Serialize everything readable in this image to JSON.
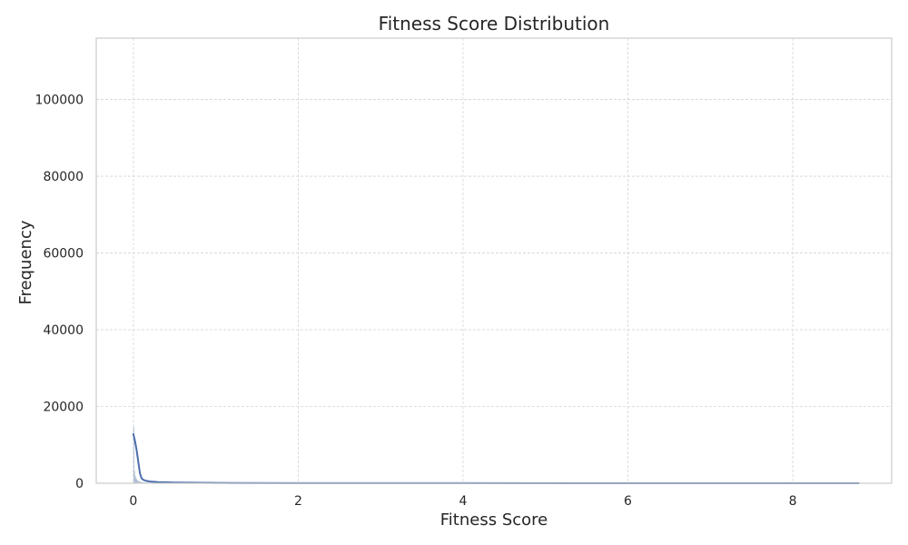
{
  "chart_data": {
    "type": "histogram",
    "title": "Fitness Score Distribution",
    "xlabel": "Fitness Score",
    "ylabel": "Frequency",
    "xlim": [
      -0.45,
      9.2
    ],
    "ylim": [
      0,
      116000
    ],
    "xticks": [
      0,
      2,
      4,
      6,
      8
    ],
    "xtick_labels": [
      "0",
      "2",
      "4",
      "6",
      "8"
    ],
    "yticks": [
      0,
      20000,
      40000,
      60000,
      80000,
      100000
    ],
    "ytick_labels": [
      "0",
      "20000",
      "40000",
      "60000",
      "80000",
      "100000"
    ],
    "grid": true,
    "bin_width": 0.01,
    "histogram": {
      "bin_starts": [
        0.0,
        0.01,
        0.02,
        0.03,
        0.04,
        0.05,
        0.06,
        0.07,
        0.08,
        0.09,
        0.1,
        0.11,
        0.12,
        0.13,
        0.14,
        0.15,
        0.17,
        0.19,
        0.22,
        0.25,
        0.3,
        0.35,
        0.4,
        0.5,
        0.6,
        0.8,
        1.0,
        1.5,
        2.0,
        3.0,
        4.0,
        5.0,
        6.0,
        7.0,
        8.0
      ],
      "counts": [
        14800,
        3200,
        1900,
        1300,
        950,
        700,
        560,
        460,
        390,
        330,
        290,
        250,
        220,
        200,
        180,
        160,
        140,
        120,
        100,
        90,
        75,
        62,
        52,
        40,
        32,
        24,
        18,
        12,
        9,
        6,
        5,
        4,
        3,
        3,
        2
      ]
    },
    "kde": {
      "x": [
        0.0,
        0.02,
        0.04,
        0.06,
        0.08,
        0.1,
        0.12,
        0.15,
        0.2,
        0.3,
        0.5,
        1.0,
        2.0,
        4.0,
        6.0,
        8.0,
        8.8
      ],
      "y": [
        12800,
        11000,
        8600,
        5600,
        2600,
        1300,
        900,
        650,
        450,
        300,
        180,
        80,
        40,
        20,
        12,
        8,
        6
      ]
    },
    "colors": {
      "bar": "#9fb2cd",
      "kde": "#4c6eab",
      "grid": "#d4d4d4",
      "spine": "#cccccc",
      "text": "#262626"
    }
  }
}
